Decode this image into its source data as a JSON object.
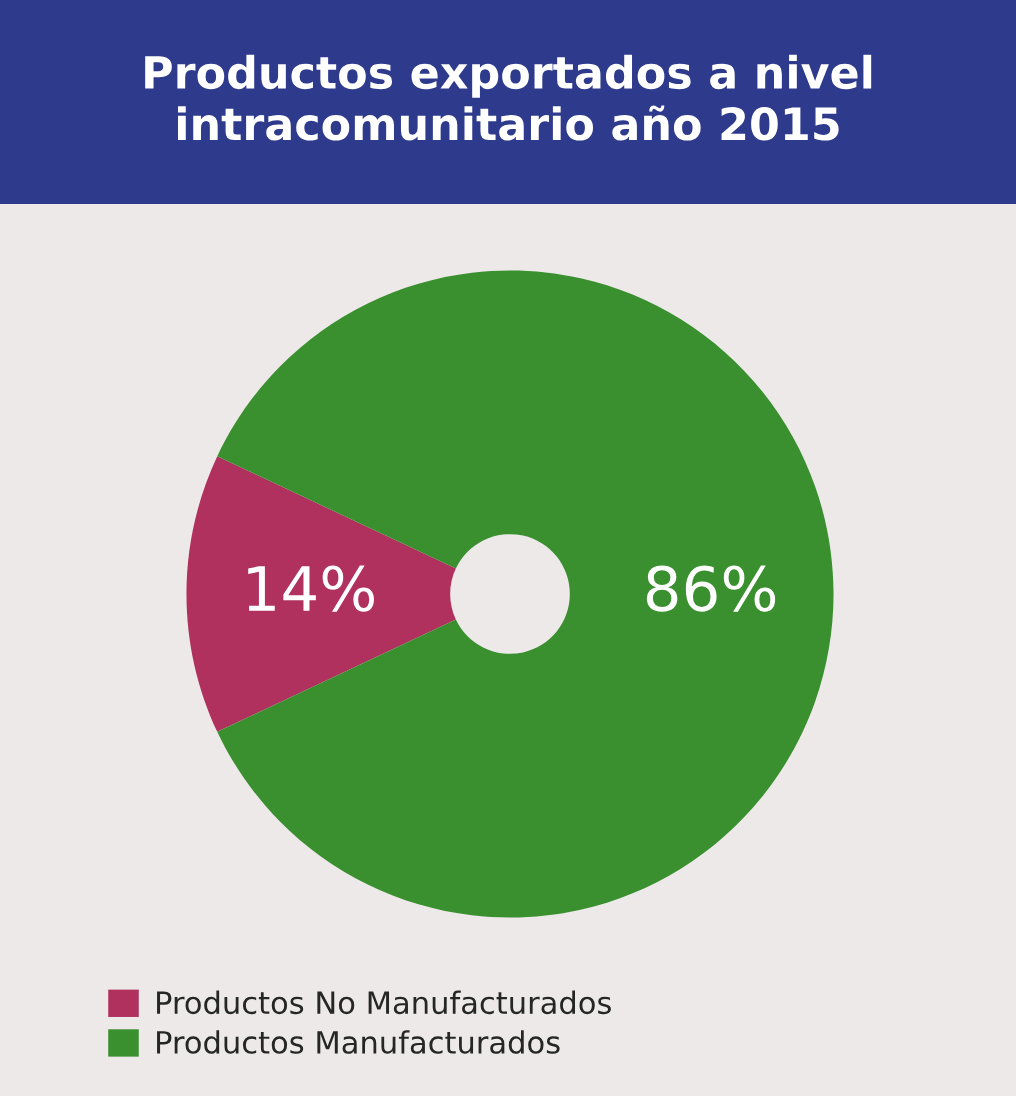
{
  "chart_data": {
    "type": "donut",
    "title": "Productos exportados a nivel\nintracomunitario año 2015",
    "categories": [
      "Productos No Manufacturados",
      "Productos Manufacturados"
    ],
    "values": [
      14,
      86
    ],
    "colors": [
      "#b0305e",
      "#3a8f2f"
    ],
    "value_labels": [
      "14%",
      "86%"
    ],
    "legend": "bottom"
  }
}
